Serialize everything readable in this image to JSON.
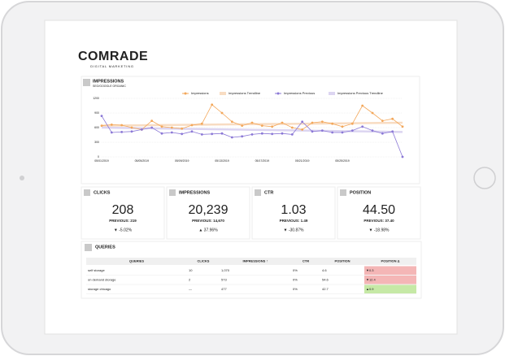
{
  "logo": {
    "name": "COMRADE",
    "tagline": "DIGITAL MARKETING"
  },
  "chart_data": {
    "type": "line",
    "title": "IMPRESSIONS",
    "subtitle": "SEO/GOOGLE ORGANIC",
    "categories": [
      "05/01/2019",
      null,
      null,
      null,
      "05/05/2019",
      null,
      null,
      null,
      "05/09/2019",
      null,
      null,
      null,
      "05/13/2019",
      null,
      null,
      null,
      "05/17/2019",
      null,
      null,
      null,
      "05/21/2019",
      null,
      null,
      null,
      "05/25/2019",
      null,
      null,
      null,
      null,
      null,
      null
    ],
    "series": [
      {
        "name": "Impressions",
        "color": "#f3a75a",
        "values": [
          640,
          660,
          650,
          600,
          560,
          740,
          620,
          600,
          580,
          650,
          680,
          1070,
          900,
          720,
          640,
          700,
          640,
          620,
          700,
          600,
          560,
          700,
          720,
          680,
          620,
          680,
          1050,
          900,
          740,
          780,
          620
        ]
      },
      {
        "name": "Impressions Trendline",
        "color": "#f8dcc2",
        "values": [
          640,
          642,
          644,
          646,
          648,
          650,
          652,
          654,
          656,
          658,
          660,
          662,
          664,
          666,
          668,
          670,
          672,
          674,
          676,
          678,
          680,
          682,
          684,
          686,
          688,
          690,
          692,
          694,
          696,
          698,
          700
        ]
      },
      {
        "name": "Impressions Previous",
        "color": "#8b78d6",
        "values": [
          840,
          500,
          510,
          520,
          560,
          600,
          480,
          500,
          470,
          520,
          460,
          470,
          480,
          400,
          420,
          460,
          480,
          470,
          480,
          460,
          720,
          520,
          540,
          500,
          500,
          540,
          620,
          540,
          480,
          520,
          0
        ]
      },
      {
        "name": "Impressions Previous Trendline",
        "color": "#dcd5f1",
        "values": [
          600,
          597,
          594,
          591,
          588,
          585,
          582,
          579,
          576,
          573,
          570,
          567,
          564,
          561,
          558,
          555,
          552,
          549,
          546,
          543,
          540,
          537,
          534,
          531,
          528,
          525,
          522,
          519,
          516,
          513,
          510
        ]
      }
    ],
    "ylim": [
      0,
      1200
    ],
    "yticks": [
      0,
      300,
      600,
      900,
      1200
    ],
    "grid": true
  },
  "kpis": [
    {
      "title": "CLICKS",
      "value": "208",
      "previous": "PREVIOUS: 219",
      "delta": "▼ -5.02%",
      "delta_color": "#e06666"
    },
    {
      "title": "IMPRESSIONS",
      "value": "20,239",
      "previous": "PREVIOUS: 14,670",
      "delta": "▲ 37.96%",
      "delta_color": "#6abf69"
    },
    {
      "title": "CTR",
      "value": "1.03",
      "previous": "PREVIOUS: 1.49",
      "delta": "▼ -30.87%",
      "delta_color": "#e06666"
    },
    {
      "title": "POSITION",
      "value": "44.50",
      "previous": "PREVIOUS: 37.40",
      "delta": "▼ -18.98%",
      "delta_color": "#e06666"
    }
  ],
  "table": {
    "title": "QUERIES",
    "columns": [
      "QUERIES",
      "CLICKS",
      "IMPRESSIONS ↑",
      "CTR",
      "POSITION",
      "POSITION Δ"
    ],
    "rows": [
      [
        "self storage",
        "10",
        "1,070",
        "0%",
        "4.6",
        "▼0.3"
      ],
      [
        "on demand storage",
        "2",
        "573",
        "0%",
        "54.6",
        "▼12.4"
      ],
      [
        "storage chicago",
        "—",
        "477",
        "0%",
        "42.7",
        "▲0.9"
      ]
    ],
    "delta_colors": [
      "#f4b6b6",
      "#f4b6b6",
      "#c6e9a6"
    ]
  }
}
